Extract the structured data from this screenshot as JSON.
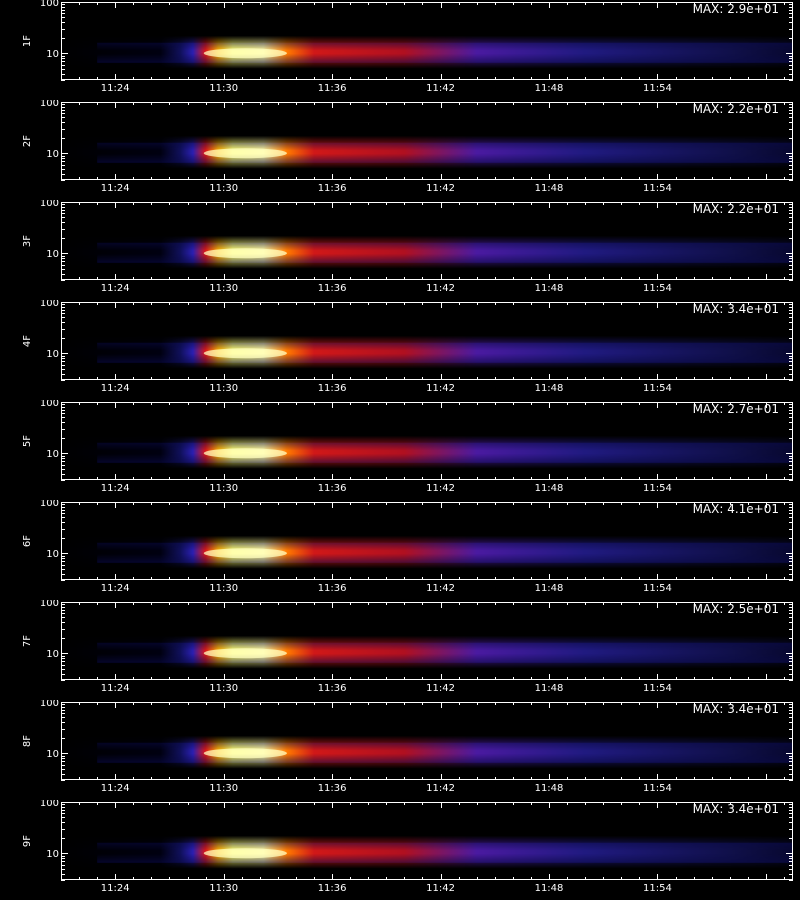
{
  "chart_data": {
    "type": "heatmap",
    "x_ticks": [
      "11:24",
      "11:30",
      "11:36",
      "11:42",
      "11:48",
      "11:54"
    ],
    "x_range_minutes_of_hour": [
      21,
      61.5
    ],
    "y_scale": "log",
    "y_range": [
      3,
      100
    ],
    "y_tick_labels": [
      "10",
      "100"
    ],
    "colormap": "blue-red-yellow-white",
    "bottom_xlabel": "",
    "panels": [
      {
        "ylabel": "1F",
        "max_label": "MAX: 2.9e+01",
        "max": 29
      },
      {
        "ylabel": "2F",
        "max_label": "MAX: 2.2e+01",
        "max": 22
      },
      {
        "ylabel": "3F",
        "max_label": "MAX: 2.2e+01",
        "max": 22
      },
      {
        "ylabel": "4F",
        "max_label": "MAX: 3.4e+01",
        "max": 34
      },
      {
        "ylabel": "5F",
        "max_label": "MAX: 2.7e+01",
        "max": 27
      },
      {
        "ylabel": "6F",
        "max_label": "MAX: 4.1e+01",
        "max": 41
      },
      {
        "ylabel": "7F",
        "max_label": "MAX: 2.5e+01",
        "max": 25
      },
      {
        "ylabel": "8F",
        "max_label": "MAX: 3.4e+01",
        "max": 34
      },
      {
        "ylabel": "9F",
        "max_label": "MAX: 3.4e+01",
        "max": 34
      }
    ]
  }
}
